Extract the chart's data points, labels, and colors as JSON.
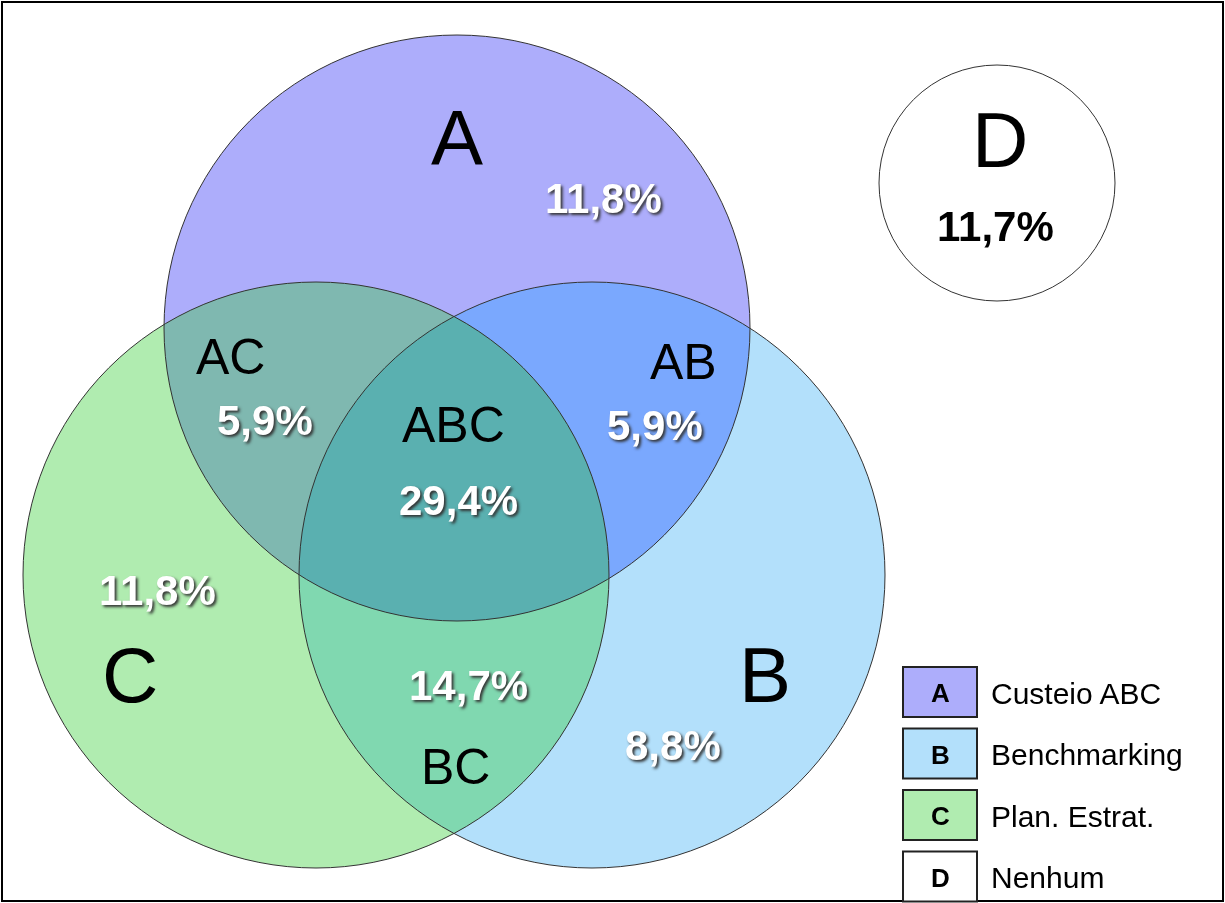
{
  "chart_data": {
    "type": "other",
    "categories": [
      "A",
      "B",
      "C",
      "D",
      "AB",
      "AC",
      "BC",
      "ABC"
    ],
    "values": [
      11.8,
      8.8,
      11.8,
      11.7,
      5.9,
      5.9,
      14.7,
      29.4
    ],
    "value_labels": [
      "11,8%",
      "8,8%",
      "11,8%",
      "11,7%",
      "5,9%",
      "5,9%",
      "14,7%",
      "29,4%"
    ],
    "colors": [
      "#adadfb",
      "#b3e0fb",
      "#b0ecb0",
      "#ffffff",
      "#7aa8fe",
      "#7fb8b0",
      "#80d8b0",
      "#5ab0b0"
    ],
    "annotations": [
      "Custeio ABC",
      "Benchmarking",
      "Plan. Estrat.",
      "Nenhum"
    ]
  }
}
